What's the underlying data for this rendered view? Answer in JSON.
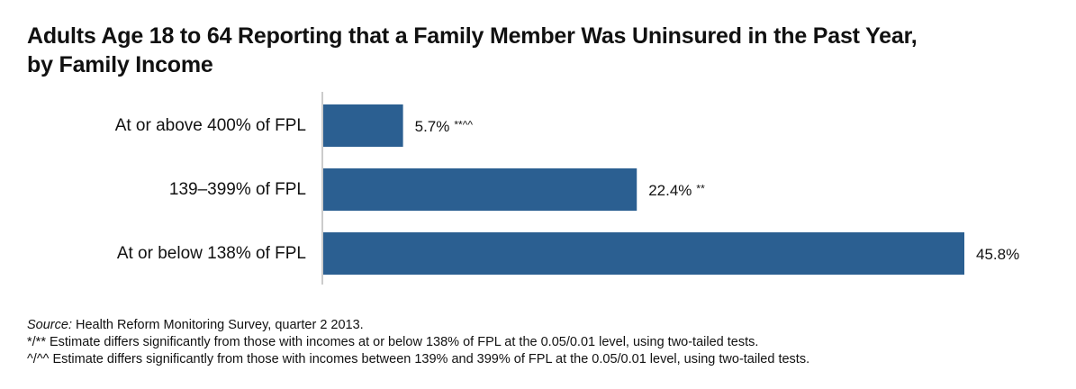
{
  "title": {
    "line1": "Adults Age 18 to 64 Reporting that a Family Member Was Uninsured in the Past Year,",
    "line2": "by Family Income"
  },
  "chart_data": {
    "type": "bar",
    "orientation": "horizontal",
    "categories": [
      "At or above 400% of FPL",
      "139–399% of FPL",
      "At or below 138% of FPL"
    ],
    "values": [
      5.7,
      22.4,
      45.8
    ],
    "value_labels": [
      "5.7%",
      "22.4%",
      "45.8%"
    ],
    "significance": [
      "**^^",
      "**",
      ""
    ],
    "xlim": [
      0,
      45.8
    ],
    "grid": false,
    "bar_color": "#2b5f91"
  },
  "notes": {
    "source_label": "Source:",
    "source_text": " Health Reform Monitoring Survey, quarter 2 2013.",
    "note1": "*/** Estimate differs significantly from those with incomes at or below 138% of FPL at the 0.05/0.01 level, using two-tailed tests.",
    "note2": "^/^^ Estimate differs significantly from those with incomes between 139% and 399% of FPL at the 0.05/0.01 level, using two-tailed tests."
  }
}
